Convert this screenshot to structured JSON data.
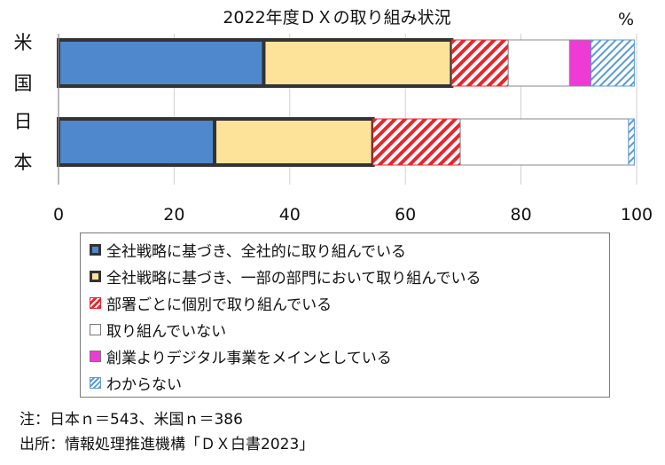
{
  "chart_data": {
    "type": "bar",
    "orientation": "horizontal",
    "stacked": true,
    "title": "2022年度ＤＸの取り組み状況",
    "unit_label": "%",
    "categories": [
      "米国",
      "日本"
    ],
    "xlim": [
      0,
      100
    ],
    "x_ticks": [
      "0",
      "20",
      "40",
      "60",
      "80",
      "100"
    ],
    "grid": true,
    "series": [
      {
        "name": "全社戦略に基づき、全社的に取り組んでいる",
        "values": [
          35.5,
          27.0
        ],
        "color": "#4f88cc",
        "pattern": "solid",
        "outline": "thick"
      },
      {
        "name": "全社戦略に基づき、一部の部門において取り組んでいる",
        "values": [
          32.5,
          27.4
        ],
        "color": "#fde39a",
        "pattern": "solid",
        "outline": "thick"
      },
      {
        "name": "部署ごとに個別で取り組んでいる",
        "values": [
          9.8,
          15.1
        ],
        "color": "#e8262d",
        "pattern": "red-diagonal-stripes",
        "outline": "thin"
      },
      {
        "name": "取り組んでいない",
        "values": [
          10.6,
          29.1
        ],
        "color": "#ffffff",
        "pattern": "solid",
        "outline": "thin"
      },
      {
        "name": "創業よりデジタル事業をメインとしている",
        "values": [
          3.7,
          0.0
        ],
        "color": "#ee3bd6",
        "pattern": "solid",
        "outline": "thin"
      },
      {
        "name": "わからない",
        "values": [
          7.5,
          1.0
        ],
        "color": "#5b9bd5",
        "pattern": "blue-diagonal-stripes",
        "outline": "thin"
      }
    ]
  },
  "notes": {
    "sample": "注：日本ｎ＝543、米国ｎ＝386",
    "source": "出所：情報処理推進機構「ＤＸ白書2023」"
  }
}
